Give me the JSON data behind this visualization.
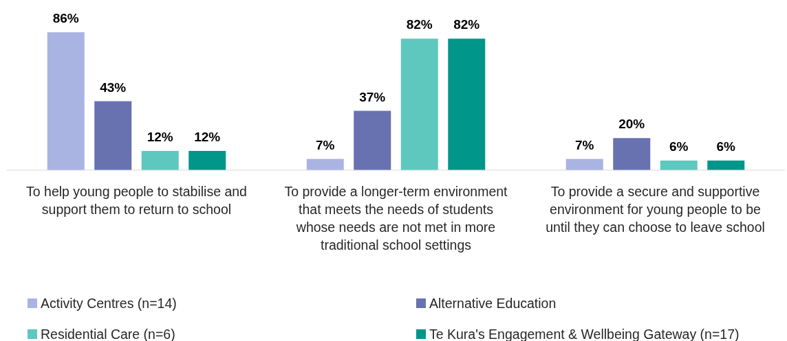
{
  "chart_data": {
    "type": "bar",
    "categories": [
      "To help young people to stabilise and support them to return to school",
      "To provide a longer-term environment that meets the needs of students whose needs are not met in more traditional school settings",
      "To provide a secure and supportive environment for young people to be until they can choose to leave school"
    ],
    "series": [
      {
        "name": "Activity Centres (n=14)",
        "color": "#aab4e3",
        "values": [
          86,
          7,
          7
        ],
        "value_labels": [
          "86%",
          "7%",
          "7%"
        ]
      },
      {
        "name": "Alternative Education",
        "color": "#6872b0",
        "values": [
          43,
          37,
          20
        ],
        "value_labels": [
          "43%",
          "37%",
          "20%"
        ]
      },
      {
        "name": "Residential Care (n=6)",
        "color": "#5ec8bf",
        "values": [
          12,
          82,
          6
        ],
        "value_labels": [
          "12%",
          "82%",
          "6%"
        ]
      },
      {
        "name": "Te Kura's Engagement & Wellbeing Gateway (n=17)",
        "color": "#00968a",
        "values": [
          12,
          82,
          6
        ],
        "value_labels": [
          "12%",
          "82%",
          "6%"
        ]
      }
    ],
    "legend": "bottom"
  }
}
